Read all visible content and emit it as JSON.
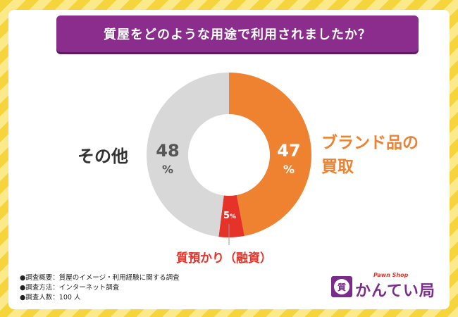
{
  "title": "質屋をどのような用途で利用されましたか？",
  "chart_data": {
    "type": "pie",
    "title": "質屋をどのような用途で利用されましたか？",
    "slices": [
      {
        "label": "ブランド品の買取",
        "value": 47,
        "color": "#ee8230"
      },
      {
        "label": "質預かり（融資）",
        "value": 5,
        "color": "#e5332a"
      },
      {
        "label": "その他",
        "value": 48,
        "color": "#d8d8d8"
      }
    ],
    "unit": "%"
  },
  "labels": {
    "brand_line1": "ブランド品の",
    "brand_line2": "買取",
    "pawn": "質預かり（融資）",
    "other": "その他",
    "brand_value": "47",
    "pawn_value": "5",
    "other_value": "48",
    "percent": "%"
  },
  "notes": [
    "●調査概要：質屋のイメージ・利用経験に関する調査",
    "●調査方法：インターネット調査",
    "●調査人数：100 人"
  ],
  "logo": {
    "sub": "Pawn Shop",
    "main": "かんてい局",
    "badge": "質"
  },
  "colors": {
    "accent": "#8b2d8c",
    "brand": "#ee8230",
    "pawn": "#e5332a",
    "other": "#d8d8d8"
  }
}
